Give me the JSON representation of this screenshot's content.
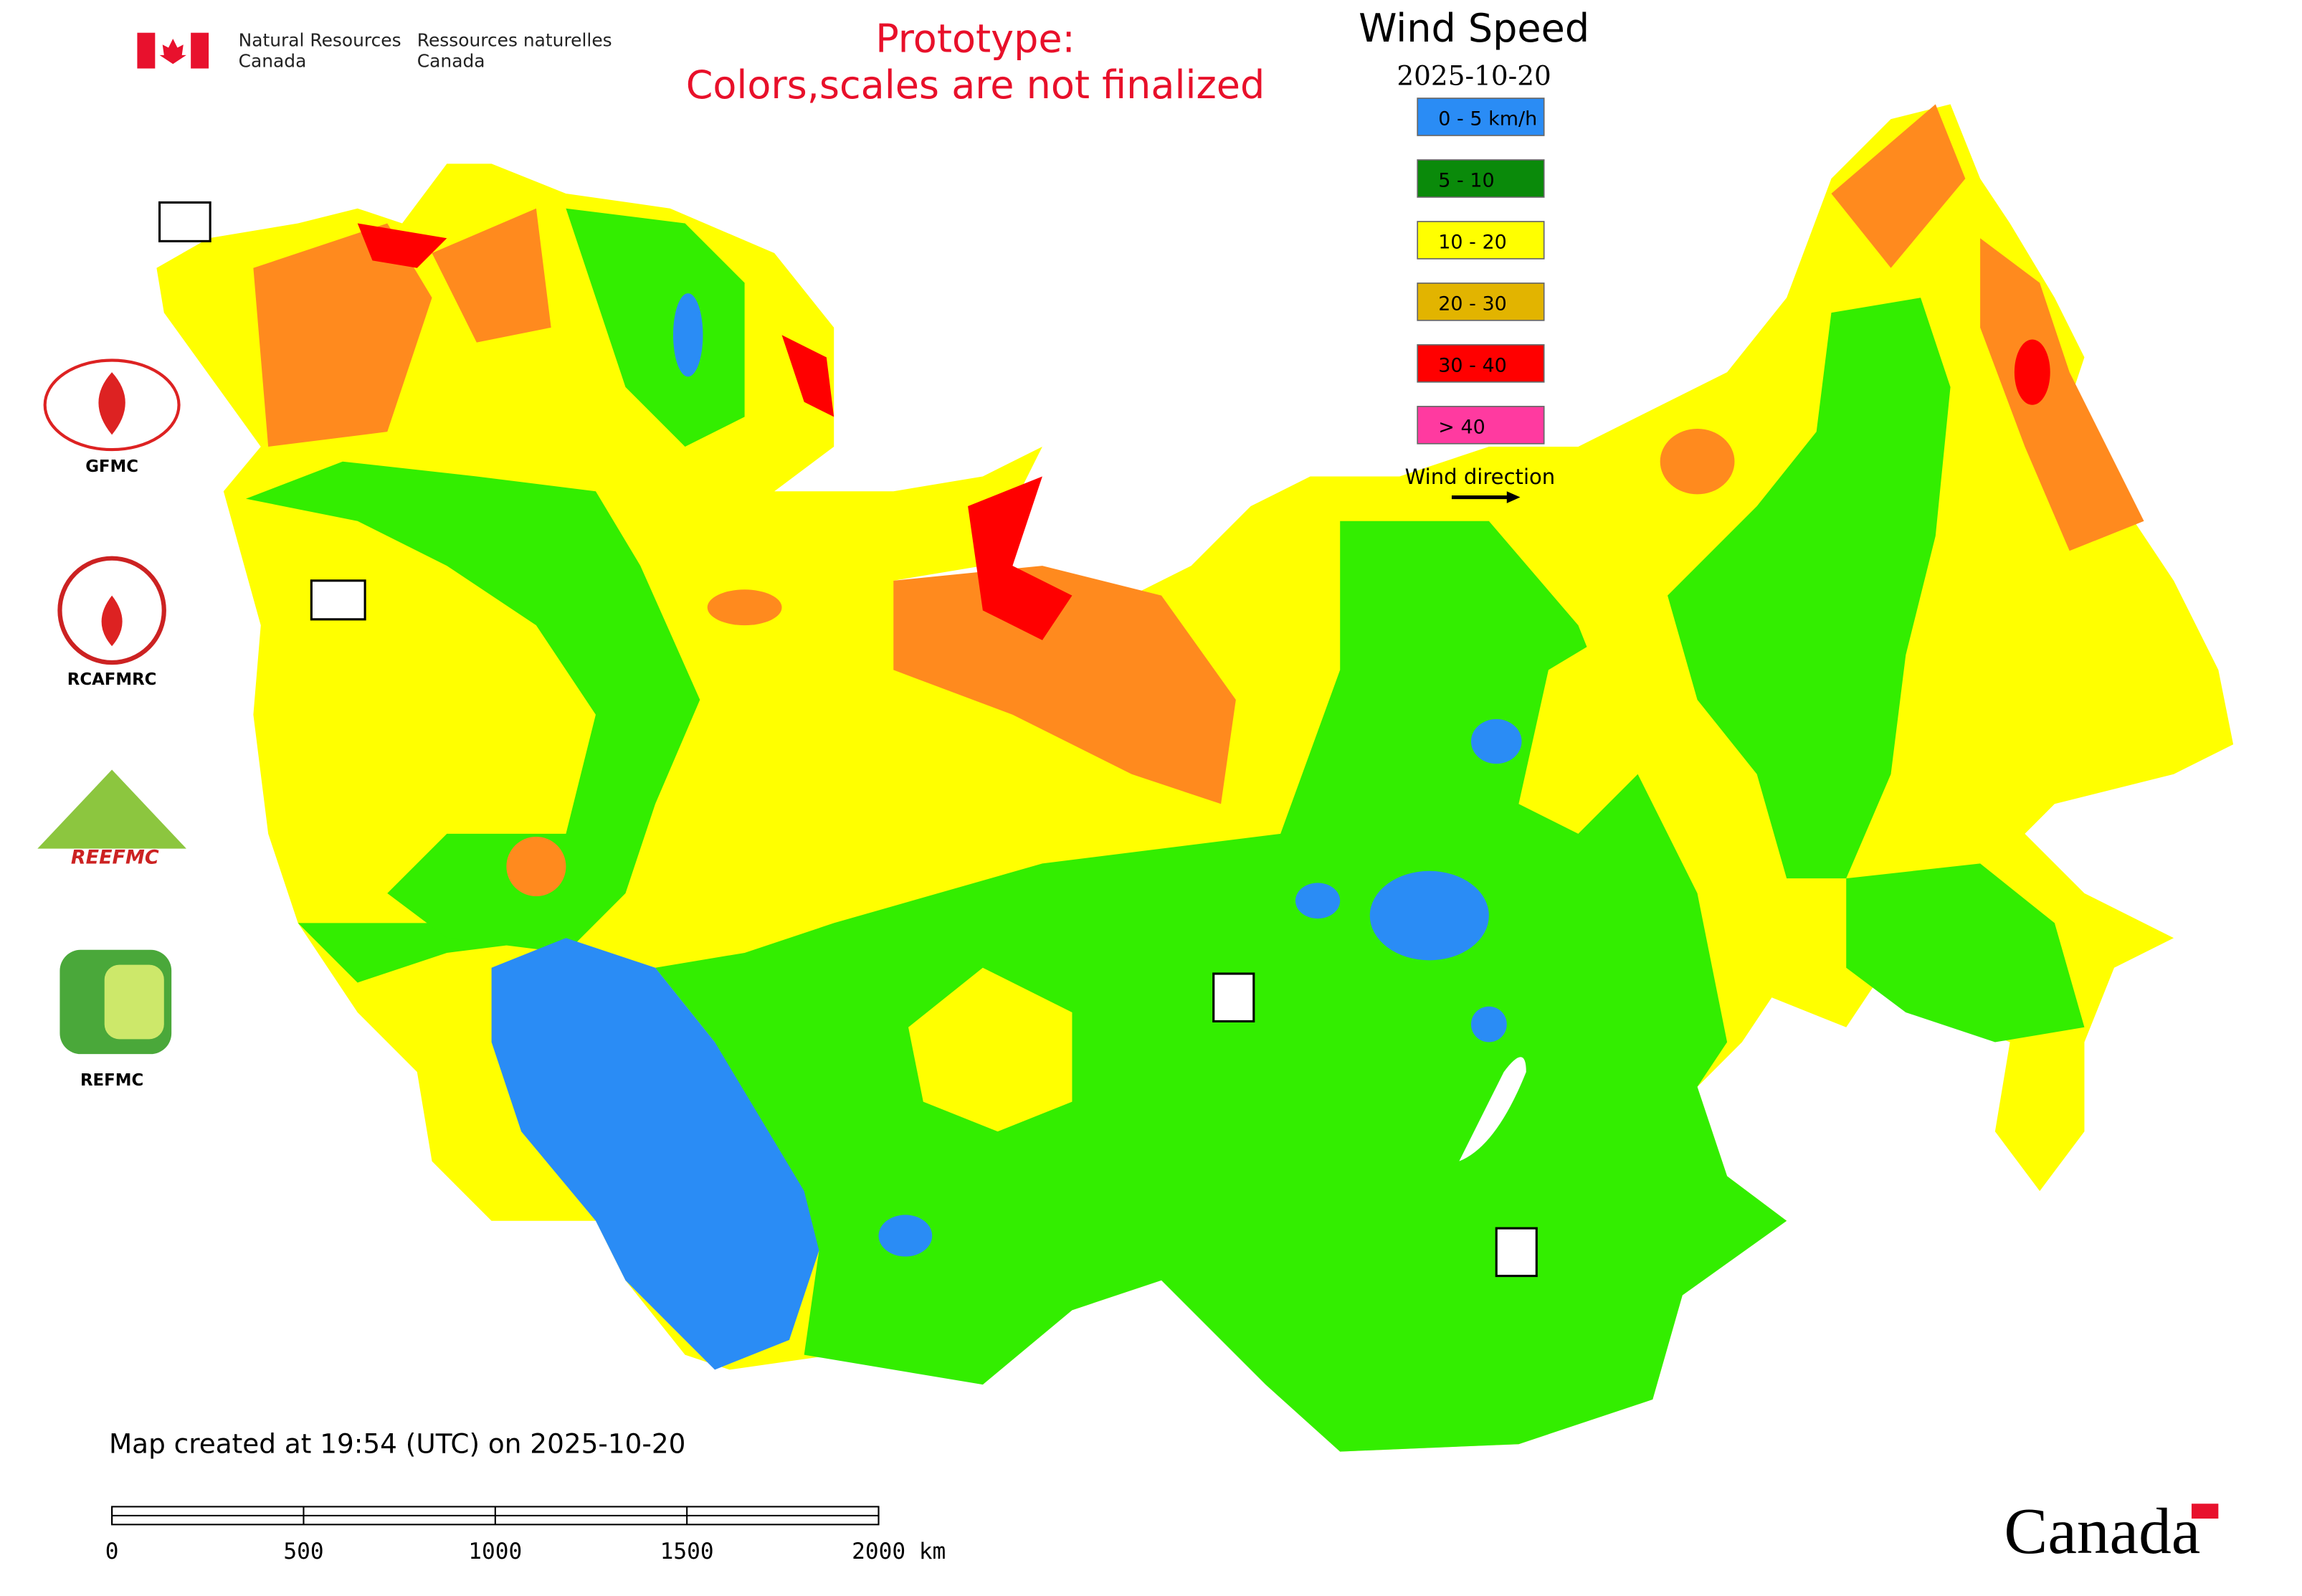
{
  "header": {
    "agency_en": [
      "Natural Resources",
      "Canada"
    ],
    "agency_fr": [
      "Ressources naturelles",
      "Canada"
    ]
  },
  "notice": [
    "Prototype:",
    "Colors,scales are not finalized"
  ],
  "legend": {
    "title": "Wind Speed",
    "date": "2025-10-20",
    "items": [
      {
        "label": "0 - 5 km/h",
        "color": "#2a8cf5"
      },
      {
        "label": "5 - 10",
        "color": "#0a8a0a"
      },
      {
        "label": "10 - 20",
        "color": "#ffff00"
      },
      {
        "label": "20 - 30",
        "color": "#e2b400"
      },
      {
        "label": "30 - 40",
        "color": "#ff0000"
      },
      {
        "label": "> 40",
        "color": "#ff3aa0"
      }
    ],
    "wind_direction": "Wind direction"
  },
  "logos": {
    "gfmc": "GFMC",
    "rcafmrc": "RCAFMRC",
    "reefmc": "REEFMC",
    "refmc": "REFMC"
  },
  "footer": "Map created at 19:54 (UTC) on 2025-10-20",
  "scale_bar": [
    "0",
    "500",
    "1000",
    "1500",
    "2000 km"
  ],
  "wordmark": "Canada"
}
